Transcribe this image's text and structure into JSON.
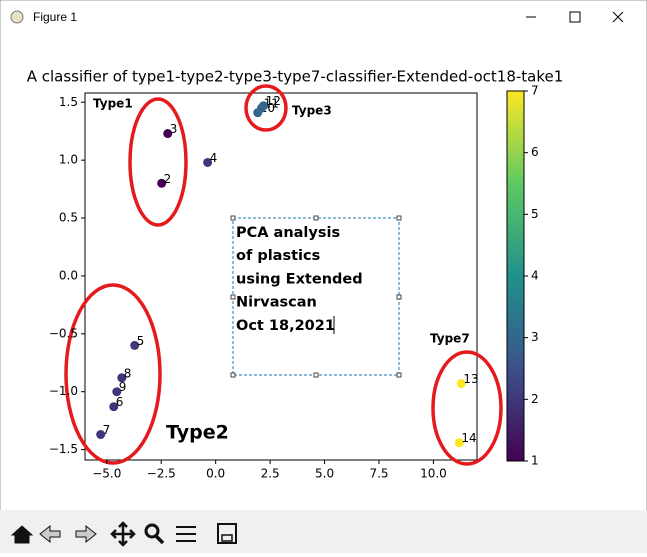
{
  "window": {
    "title": "Figure 1"
  },
  "chart_data": {
    "type": "scatter",
    "title": "A classifier of type1-type2-type3-type7-classifier-Extended-oct18-take1",
    "x": [
      -2.48,
      -2.2,
      -0.37,
      -3.72,
      -4.68,
      -5.28,
      -4.31,
      -4.54,
      1.93,
      2.11,
      2.2,
      11.28,
      11.19
    ],
    "y": [
      0.8,
      1.23,
      0.98,
      -0.6,
      -1.13,
      -1.37,
      -0.88,
      -1.0,
      1.41,
      1.45,
      1.47,
      -0.93,
      -1.44
    ],
    "point_labels": [
      "2",
      "3",
      "4",
      "5",
      "6",
      "7",
      "8",
      "9",
      "10",
      "11",
      "12",
      "13",
      "14"
    ],
    "color_values": [
      1,
      1,
      2,
      2,
      2,
      2,
      2,
      2,
      3,
      3,
      3,
      7,
      7
    ],
    "colormap": "viridis",
    "clim": [
      1,
      7
    ],
    "colorbar_ticks": [
      1,
      2,
      3,
      4,
      5,
      6,
      7
    ],
    "xlim": [
      -6,
      12
    ],
    "ylim": [
      -1.59,
      1.58
    ],
    "xticks": [
      {
        "value": -5,
        "label": "−5.0"
      },
      {
        "value": -2.5,
        "label": "−2.5"
      },
      {
        "value": 0,
        "label": "0.0"
      },
      {
        "value": 2.5,
        "label": "2.5"
      },
      {
        "value": 5,
        "label": "5.0"
      },
      {
        "value": 7.5,
        "label": "7.5"
      },
      {
        "value": 10,
        "label": "10.0"
      }
    ],
    "yticks": [
      {
        "value": -1.5,
        "label": "−1.5"
      },
      {
        "value": -1,
        "label": "−1.0"
      },
      {
        "value": -0.5,
        "label": "−0.5"
      },
      {
        "value": 0,
        "label": "0.0"
      },
      {
        "value": 0.5,
        "label": "0.5"
      },
      {
        "value": 1,
        "label": "1.0"
      },
      {
        "value": 1.5,
        "label": "1.5"
      }
    ],
    "annotations": [
      "Type1",
      "Type3",
      "Type7",
      "Type2"
    ],
    "text_box": [
      "PCA analysis",
      "of plastics",
      "using Extended",
      "Nirvascan",
      "Oct 18,2021"
    ]
  }
}
